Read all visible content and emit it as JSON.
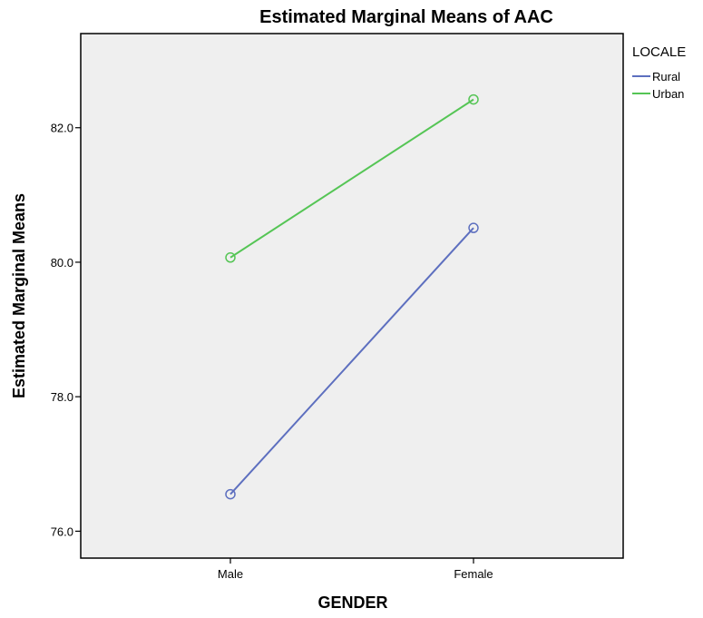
{
  "chart_data": {
    "type": "line",
    "title": "Estimated Marginal Means of AAC",
    "xlabel": "GENDER",
    "ylabel": "Estimated Marginal Means",
    "categories": [
      "Male",
      "Female"
    ],
    "ylim": [
      75.6,
      83.4
    ],
    "yticks": [
      76.0,
      78.0,
      80.0,
      82.0
    ],
    "ytick_labels": [
      "76.0",
      "78.0",
      "80.0",
      "82.0"
    ],
    "legend_title": "LOCALE",
    "legend_position": "right",
    "grid": false,
    "plot_background": "#efefef",
    "series": [
      {
        "name": "Rural",
        "values": [
          76.55,
          80.51
        ],
        "color": "#5d6fbf"
      },
      {
        "name": "Urban",
        "values": [
          80.07,
          82.42
        ],
        "color": "#55c555"
      }
    ]
  }
}
